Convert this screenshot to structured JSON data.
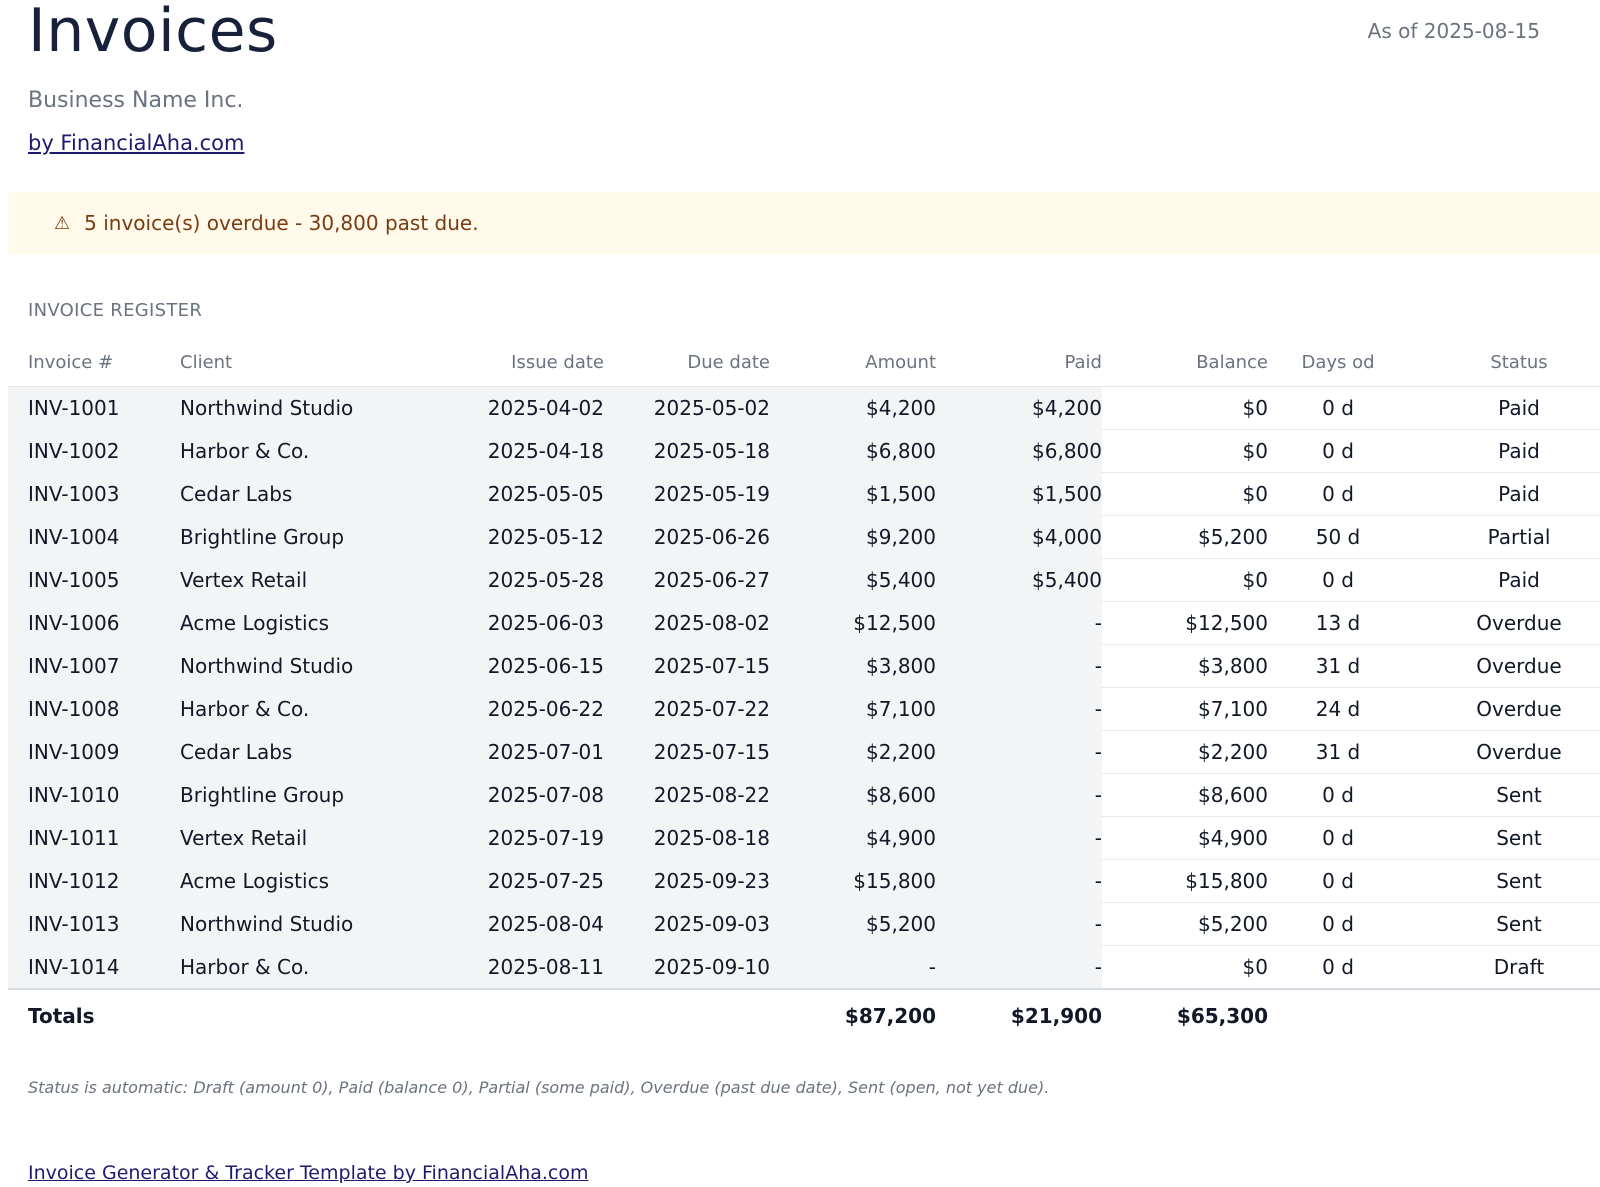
{
  "header": {
    "title": "Invoices",
    "as_of": "As of 2025-08-15",
    "business": "Business Name Inc.",
    "by_link": "by FinancialAha.com"
  },
  "banner": {
    "icon": "⚠",
    "text": "5 invoice(s) overdue - 30,800 past due."
  },
  "register": {
    "section_title": "INVOICE REGISTER",
    "columns": [
      "Invoice #",
      "Client",
      "Issue date",
      "Due date",
      "Amount",
      "Paid",
      "Balance",
      "Days od",
      "Status"
    ],
    "rows": [
      {
        "invoice": "INV-1001",
        "client": "Northwind Studio",
        "issue": "2025-04-02",
        "due": "2025-05-02",
        "amount": "$4,200",
        "paid": "$4,200",
        "balance": "$0",
        "days": "0 d",
        "status": "Paid"
      },
      {
        "invoice": "INV-1002",
        "client": "Harbor & Co.",
        "issue": "2025-04-18",
        "due": "2025-05-18",
        "amount": "$6,800",
        "paid": "$6,800",
        "balance": "$0",
        "days": "0 d",
        "status": "Paid"
      },
      {
        "invoice": "INV-1003",
        "client": "Cedar Labs",
        "issue": "2025-05-05",
        "due": "2025-05-19",
        "amount": "$1,500",
        "paid": "$1,500",
        "balance": "$0",
        "days": "0 d",
        "status": "Paid"
      },
      {
        "invoice": "INV-1004",
        "client": "Brightline Group",
        "issue": "2025-05-12",
        "due": "2025-06-26",
        "amount": "$9,200",
        "paid": "$4,000",
        "balance": "$5,200",
        "days": "50 d",
        "status": "Partial"
      },
      {
        "invoice": "INV-1005",
        "client": "Vertex Retail",
        "issue": "2025-05-28",
        "due": "2025-06-27",
        "amount": "$5,400",
        "paid": "$5,400",
        "balance": "$0",
        "days": "0 d",
        "status": "Paid"
      },
      {
        "invoice": "INV-1006",
        "client": "Acme Logistics",
        "issue": "2025-06-03",
        "due": "2025-08-02",
        "amount": "$12,500",
        "paid": "-",
        "balance": "$12,500",
        "days": "13 d",
        "status": "Overdue"
      },
      {
        "invoice": "INV-1007",
        "client": "Northwind Studio",
        "issue": "2025-06-15",
        "due": "2025-07-15",
        "amount": "$3,800",
        "paid": "-",
        "balance": "$3,800",
        "days": "31 d",
        "status": "Overdue"
      },
      {
        "invoice": "INV-1008",
        "client": "Harbor & Co.",
        "issue": "2025-06-22",
        "due": "2025-07-22",
        "amount": "$7,100",
        "paid": "-",
        "balance": "$7,100",
        "days": "24 d",
        "status": "Overdue"
      },
      {
        "invoice": "INV-1009",
        "client": "Cedar Labs",
        "issue": "2025-07-01",
        "due": "2025-07-15",
        "amount": "$2,200",
        "paid": "-",
        "balance": "$2,200",
        "days": "31 d",
        "status": "Overdue"
      },
      {
        "invoice": "INV-1010",
        "client": "Brightline Group",
        "issue": "2025-07-08",
        "due": "2025-08-22",
        "amount": "$8,600",
        "paid": "-",
        "balance": "$8,600",
        "days": "0 d",
        "status": "Sent"
      },
      {
        "invoice": "INV-1011",
        "client": "Vertex Retail",
        "issue": "2025-07-19",
        "due": "2025-08-18",
        "amount": "$4,900",
        "paid": "-",
        "balance": "$4,900",
        "days": "0 d",
        "status": "Sent"
      },
      {
        "invoice": "INV-1012",
        "client": "Acme Logistics",
        "issue": "2025-07-25",
        "due": "2025-09-23",
        "amount": "$15,800",
        "paid": "-",
        "balance": "$15,800",
        "days": "0 d",
        "status": "Sent"
      },
      {
        "invoice": "INV-1013",
        "client": "Northwind Studio",
        "issue": "2025-08-04",
        "due": "2025-09-03",
        "amount": "$5,200",
        "paid": "-",
        "balance": "$5,200",
        "days": "0 d",
        "status": "Sent"
      },
      {
        "invoice": "INV-1014",
        "client": "Harbor & Co.",
        "issue": "2025-08-11",
        "due": "2025-09-10",
        "amount": "-",
        "paid": "-",
        "balance": "$0",
        "days": "0 d",
        "status": "Draft"
      }
    ],
    "totals": {
      "label": "Totals",
      "amount": "$87,200",
      "paid": "$21,900",
      "balance": "$65,300"
    }
  },
  "footnote": "Status is automatic: Draft (amount 0), Paid (balance 0), Partial (some paid), Overdue (past due date), Sent (open, not yet due).",
  "footer_link": "Invoice Generator & Tracker Template by FinancialAha.com",
  "colors": {
    "title": "#17213a",
    "banner_bg": "#fffaea",
    "banner_text": "#7a3a12",
    "link": "#1e1b6e",
    "shade": "#f3f4f6"
  }
}
